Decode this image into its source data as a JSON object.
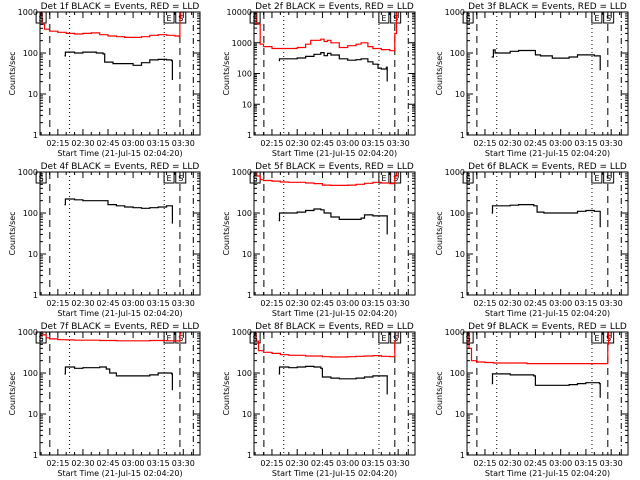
{
  "chart_data": {
    "type": "line",
    "layout": "3x3 grid",
    "shared": {
      "xlabel": "Start Time (21-Jul-15 02:04:20)",
      "ylabel": "Counts/sec",
      "yscale": "log",
      "x_unit": "minutes after 02:00",
      "xlim": [
        4.33,
        100
      ],
      "x_ticks": [
        15,
        30,
        45,
        60,
        75,
        90
      ],
      "x_tick_labels": [
        "02:15",
        "02:30",
        "02:45",
        "03:00",
        "03:15",
        "03:30"
      ],
      "legend": "in title: BLACK = Events, RED = LLD",
      "series_colors": {
        "events": "#000000",
        "lld": "#ff0000"
      },
      "markers": [
        {
          "label": "S",
          "x": 5.0,
          "style": "box"
        },
        {
          "label": "E",
          "x": 81.5,
          "style": "box"
        },
        {
          "label": "S",
          "x": 88.5,
          "style": "box"
        }
      ],
      "vlines": [
        {
          "x": 10.2,
          "style": "dashed"
        },
        {
          "x": 22.0,
          "style": "dotted"
        },
        {
          "x": 78.6,
          "style": "dotted"
        },
        {
          "x": 88.0,
          "style": "dashed"
        },
        {
          "x": 96.0,
          "style": "dashdot"
        }
      ]
    },
    "panels": [
      {
        "title": "Det 1f BLACK = Events, RED = LLD",
        "ylim": [
          1,
          1000
        ],
        "y_tick_labels": [
          "1",
          "10",
          "100",
          "1000"
        ],
        "events": {
          "x": [
            19,
            19.5,
            25,
            30,
            35,
            38,
            42,
            43,
            48,
            55,
            60,
            65,
            70,
            75,
            80,
            83,
            83.5
          ],
          "y": [
            85,
            105,
            100,
            105,
            105,
            100,
            95,
            60,
            55,
            55,
            50,
            58,
            68,
            70,
            68,
            65,
            22
          ]
        },
        "lld": {
          "x": [
            5,
            5.5,
            7,
            10,
            15,
            20,
            25,
            30,
            35,
            40,
            45,
            50,
            55,
            60,
            65,
            70,
            75,
            80,
            85,
            87.5,
            88,
            88.5
          ],
          "y": [
            1000,
            500,
            380,
            340,
            320,
            300,
            290,
            300,
            310,
            280,
            260,
            250,
            240,
            240,
            250,
            270,
            280,
            270,
            260,
            250,
            700,
            1000
          ]
        }
      },
      {
        "title": "Det 2f BLACK = Events, RED = LLD",
        "ylim": [
          1,
          10000
        ],
        "y_tick_labels": [
          "1",
          "10",
          "100",
          "1000",
          "10000"
        ],
        "events": {
          "x": [
            19,
            19.5,
            25,
            30,
            35,
            40,
            44,
            46,
            48,
            50,
            55,
            60,
            65,
            68,
            72,
            75,
            78,
            80,
            83,
            83.5
          ],
          "y": [
            260,
            300,
            300,
            320,
            360,
            420,
            480,
            380,
            450,
            400,
            300,
            270,
            280,
            300,
            240,
            200,
            150,
            140,
            160,
            55
          ]
        },
        "lld": {
          "x": [
            5,
            6,
            8,
            10,
            15,
            20,
            25,
            30,
            35,
            38,
            44,
            46,
            48,
            50,
            55,
            60,
            65,
            68,
            72,
            75,
            80,
            85,
            87,
            88,
            89
          ],
          "y": [
            10000,
            4000,
            900,
            750,
            650,
            650,
            650,
            700,
            900,
            1200,
            1300,
            1100,
            1200,
            1000,
            700,
            800,
            900,
            1000,
            750,
            650,
            600,
            550,
            550,
            2000,
            10000
          ]
        }
      },
      {
        "title": "Det 3f BLACK = Events, RED = LLD",
        "ylim": [
          1,
          1000
        ],
        "y_tick_labels": [
          "1",
          "10",
          "100",
          "1000"
        ],
        "events": {
          "x": [
            19,
            20,
            21,
            25,
            30,
            35,
            40,
            45,
            48,
            55,
            60,
            65,
            70,
            75,
            80,
            83,
            83.5
          ],
          "y": [
            80,
            120,
            100,
            100,
            110,
            115,
            115,
            90,
            85,
            75,
            75,
            80,
            90,
            90,
            85,
            85,
            38
          ]
        },
        "lld": null
      },
      {
        "title": "Det 4f BLACK = Events, RED = LLD",
        "ylim": [
          1,
          1000
        ],
        "y_tick_labels": [
          "1",
          "10",
          "100",
          "1000"
        ],
        "events": {
          "x": [
            19,
            19.5,
            25,
            30,
            35,
            40,
            43,
            45,
            50,
            55,
            60,
            65,
            70,
            75,
            80,
            83,
            83.5
          ],
          "y": [
            160,
            220,
            210,
            200,
            200,
            200,
            200,
            160,
            150,
            140,
            135,
            130,
            135,
            140,
            150,
            150,
            55
          ]
        },
        "lld": null
      },
      {
        "title": "Det 5f BLACK = Events, RED = LLD",
        "ylim": [
          1,
          1000
        ],
        "y_tick_labels": [
          "1",
          "10",
          "100",
          "1000"
        ],
        "events": {
          "x": [
            19,
            19.5,
            25,
            30,
            35,
            40,
            44,
            46,
            50,
            55,
            60,
            65,
            68,
            70,
            75,
            80,
            83,
            83.5
          ],
          "y": [
            65,
            100,
            100,
            105,
            115,
            125,
            120,
            100,
            80,
            70,
            70,
            70,
            75,
            90,
            85,
            85,
            85,
            30
          ]
        },
        "lld": {
          "x": [
            5,
            6,
            8,
            10,
            15,
            20,
            25,
            30,
            35,
            40,
            45,
            50,
            55,
            60,
            65,
            70,
            75,
            80,
            85,
            87,
            88,
            89
          ],
          "y": [
            1000,
            800,
            650,
            620,
            600,
            570,
            560,
            560,
            540,
            520,
            480,
            470,
            470,
            480,
            500,
            530,
            560,
            540,
            520,
            520,
            800,
            1000
          ]
        }
      },
      {
        "title": "Det 6f BLACK = Events, RED = LLD",
        "ylim": [
          1,
          1000
        ],
        "y_tick_labels": [
          "1",
          "10",
          "100",
          "1000"
        ],
        "events": {
          "x": [
            19,
            19.5,
            25,
            30,
            35,
            40,
            44,
            46,
            50,
            55,
            60,
            65,
            70,
            75,
            80,
            83,
            83.5
          ],
          "y": [
            100,
            150,
            150,
            155,
            160,
            160,
            150,
            105,
            100,
            100,
            100,
            100,
            110,
            115,
            110,
            110,
            45
          ]
        },
        "lld": null
      },
      {
        "title": "Det 7f BLACK = Events, RED = LLD",
        "ylim": [
          1,
          1000
        ],
        "y_tick_labels": [
          "1",
          "10",
          "100",
          "1000"
        ],
        "events": {
          "x": [
            19,
            19.5,
            25,
            30,
            35,
            40,
            44,
            46,
            50,
            55,
            60,
            65,
            70,
            75,
            80,
            83,
            83.5
          ],
          "y": [
            95,
            140,
            130,
            135,
            135,
            140,
            125,
            100,
            85,
            85,
            85,
            85,
            90,
            100,
            100,
            95,
            38
          ]
        },
        "lld": {
          "x": [
            5,
            6,
            8,
            10,
            15,
            20,
            25,
            30,
            40,
            50,
            60,
            70,
            80,
            87.5,
            88,
            88.5
          ],
          "y": [
            1000,
            850,
            720,
            680,
            650,
            640,
            630,
            630,
            620,
            610,
            610,
            620,
            610,
            600,
            900,
            1000
          ]
        }
      },
      {
        "title": "Det 8f BLACK = Events, RED = LLD",
        "ylim": [
          1,
          1000
        ],
        "y_tick_labels": [
          "1",
          "10",
          "100",
          "1000"
        ],
        "events": {
          "x": [
            19,
            19.5,
            25,
            30,
            35,
            40,
            44,
            45,
            50,
            55,
            60,
            65,
            70,
            75,
            80,
            83,
            83.5
          ],
          "y": [
            95,
            140,
            135,
            140,
            145,
            140,
            130,
            80,
            75,
            72,
            72,
            75,
            80,
            85,
            85,
            85,
            30
          ]
        },
        "lld": {
          "x": [
            5,
            5.5,
            7,
            10,
            15,
            20,
            25,
            30,
            35,
            40,
            45,
            50,
            55,
            60,
            65,
            70,
            75,
            80,
            85,
            87.5,
            88,
            88.5
          ],
          "y": [
            1000,
            600,
            350,
            320,
            300,
            280,
            270,
            270,
            260,
            260,
            250,
            245,
            245,
            250,
            255,
            260,
            265,
            255,
            250,
            250,
            600,
            1000
          ]
        }
      },
      {
        "title": "Det 9f BLACK = Events, RED = LLD",
        "ylim": [
          1,
          1000
        ],
        "y_tick_labels": [
          "1",
          "10",
          "100",
          "1000"
        ],
        "events": {
          "x": [
            19,
            19.5,
            25,
            30,
            35,
            40,
            44,
            45,
            50,
            55,
            60,
            65,
            70,
            75,
            80,
            83,
            83.5
          ],
          "y": [
            55,
            95,
            95,
            90,
            90,
            90,
            85,
            50,
            50,
            50,
            50,
            52,
            55,
            58,
            58,
            55,
            25
          ]
        },
        "lld": {
          "x": [
            5,
            5.5,
            7,
            10,
            15,
            20,
            25,
            30,
            40,
            50,
            60,
            70,
            80,
            87.5,
            88,
            88.5
          ],
          "y": [
            1000,
            400,
            200,
            185,
            180,
            175,
            175,
            175,
            170,
            170,
            170,
            170,
            170,
            170,
            500,
            1000
          ]
        }
      }
    ]
  }
}
